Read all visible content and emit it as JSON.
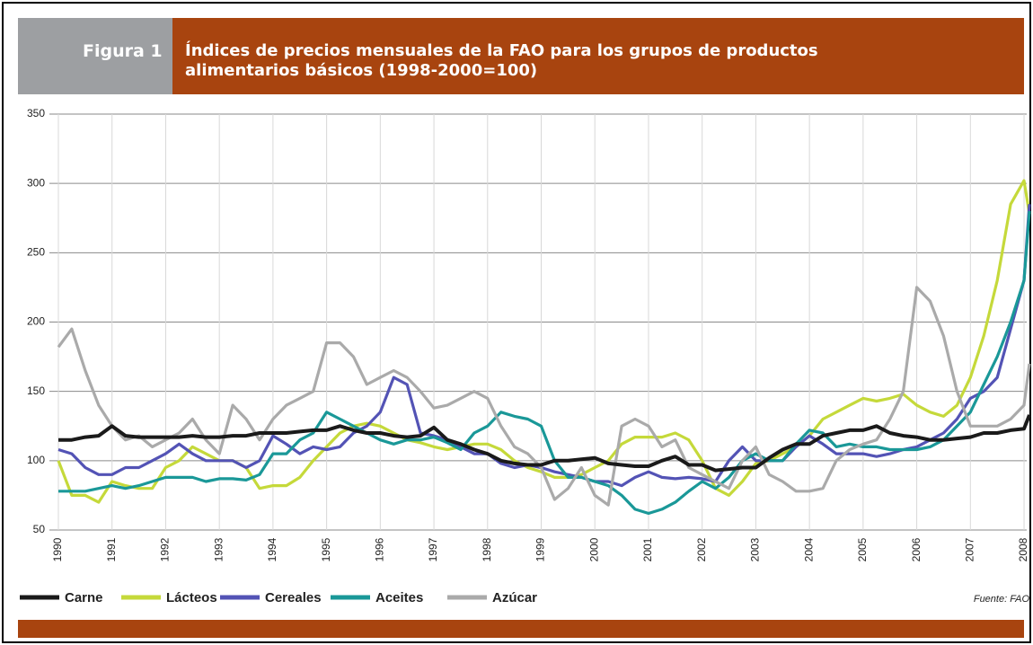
{
  "chart_data": {
    "type": "line",
    "figure_label": "Figura 1",
    "title": "Índices de precios mensuales de la FAO para los grupos de productos alimentarios básicos (1998-2000=100)",
    "source": "Fuente: FAO",
    "x": [
      1990,
      1990.25,
      1990.5,
      1990.75,
      1991,
      1991.25,
      1991.5,
      1991.75,
      1992,
      1992.25,
      1992.5,
      1992.75,
      1993,
      1993.25,
      1993.5,
      1993.75,
      1994,
      1994.25,
      1994.5,
      1994.75,
      1995,
      1995.25,
      1995.5,
      1995.75,
      1996,
      1996.25,
      1996.5,
      1996.75,
      1997,
      1997.25,
      1997.5,
      1997.75,
      1998,
      1998.25,
      1998.5,
      1998.75,
      1999,
      1999.25,
      1999.5,
      1999.75,
      2000,
      2000.25,
      2000.5,
      2000.75,
      2001,
      2001.25,
      2001.5,
      2001.75,
      2002,
      2002.25,
      2002.5,
      2002.75,
      2003,
      2003.25,
      2003.5,
      2003.75,
      2004,
      2004.25,
      2004.5,
      2004.75,
      2005,
      2005.25,
      2005.5,
      2005.75,
      2006,
      2006.25,
      2006.5,
      2006.75,
      2007,
      2007.25,
      2007.5,
      2007.75,
      2008,
      2008.1
    ],
    "series": [
      {
        "name": "Carne",
        "color": "#1a1a1a",
        "values": [
          115,
          115,
          117,
          118,
          125,
          118,
          117,
          117,
          117,
          117,
          118,
          117,
          117,
          118,
          118,
          120,
          120,
          120,
          121,
          122,
          122,
          125,
          122,
          120,
          120,
          118,
          117,
          118,
          124,
          115,
          112,
          108,
          105,
          100,
          98,
          97,
          97,
          100,
          100,
          101,
          102,
          98,
          97,
          96,
          96,
          100,
          103,
          97,
          97,
          93,
          94,
          95,
          95,
          102,
          108,
          112,
          112,
          118,
          120,
          122,
          122,
          125,
          120,
          118,
          117,
          115,
          115,
          116,
          117,
          120,
          120,
          122,
          123,
          133
        ]
      },
      {
        "name": "Lácteos",
        "color": "#c5d93a",
        "values": [
          100,
          75,
          75,
          70,
          85,
          82,
          80,
          80,
          95,
          100,
          110,
          105,
          100,
          100,
          95,
          80,
          82,
          82,
          88,
          100,
          110,
          120,
          125,
          127,
          125,
          120,
          115,
          113,
          110,
          108,
          110,
          112,
          112,
          108,
          100,
          95,
          92,
          88,
          88,
          90,
          95,
          100,
          112,
          117,
          117,
          117,
          120,
          115,
          100,
          80,
          75,
          85,
          98,
          100,
          105,
          110,
          118,
          130,
          135,
          140,
          145,
          143,
          145,
          148,
          140,
          135,
          132,
          140,
          160,
          190,
          230,
          285,
          302,
          278
        ]
      },
      {
        "name": "Cereales",
        "color": "#5353b5",
        "values": [
          108,
          105,
          95,
          90,
          90,
          95,
          95,
          100,
          105,
          112,
          105,
          100,
          100,
          100,
          95,
          100,
          118,
          112,
          105,
          110,
          108,
          110,
          120,
          125,
          135,
          160,
          155,
          120,
          118,
          115,
          110,
          105,
          105,
          98,
          95,
          97,
          95,
          92,
          90,
          88,
          85,
          85,
          82,
          88,
          92,
          88,
          87,
          88,
          87,
          85,
          100,
          110,
          100,
          100,
          100,
          110,
          118,
          112,
          105,
          105,
          105,
          103,
          105,
          108,
          110,
          115,
          120,
          130,
          145,
          150,
          160,
          195,
          230,
          285
        ]
      },
      {
        "name": "Aceites",
        "color": "#1a9898",
        "values": [
          78,
          78,
          78,
          80,
          82,
          80,
          82,
          85,
          88,
          88,
          88,
          85,
          87,
          87,
          86,
          90,
          105,
          105,
          115,
          120,
          135,
          130,
          125,
          120,
          115,
          112,
          115,
          115,
          117,
          113,
          108,
          120,
          125,
          135,
          132,
          130,
          125,
          100,
          88,
          88,
          85,
          82,
          75,
          65,
          62,
          65,
          70,
          78,
          85,
          80,
          88,
          100,
          105,
          100,
          100,
          112,
          122,
          120,
          110,
          112,
          110,
          110,
          108,
          108,
          108,
          110,
          115,
          125,
          135,
          155,
          175,
          200,
          230,
          280
        ]
      },
      {
        "name": "Azúcar",
        "color": "#aaaaaa",
        "values": [
          182,
          195,
          165,
          140,
          125,
          115,
          118,
          110,
          115,
          120,
          130,
          115,
          105,
          140,
          130,
          115,
          130,
          140,
          145,
          150,
          185,
          185,
          175,
          155,
          160,
          165,
          160,
          150,
          138,
          140,
          145,
          150,
          145,
          125,
          110,
          105,
          95,
          72,
          80,
          95,
          75,
          68,
          125,
          130,
          125,
          110,
          115,
          95,
          90,
          85,
          80,
          100,
          110,
          90,
          85,
          78,
          78,
          80,
          100,
          108,
          112,
          115,
          130,
          150,
          225,
          215,
          190,
          150,
          125,
          125,
          125,
          130,
          140,
          170
        ]
      }
    ],
    "xlim": [
      1990,
      2008.1
    ],
    "xticks": [
      1990,
      1991,
      1992,
      1993,
      1994,
      1995,
      1996,
      1997,
      1998,
      1999,
      2000,
      2001,
      2002,
      2003,
      2004,
      2005,
      2006,
      2007,
      2008
    ],
    "ylim": [
      50,
      350
    ],
    "yticks": [
      50,
      100,
      150,
      200,
      250,
      300,
      350
    ],
    "grid": true,
    "legend": "bottom"
  }
}
